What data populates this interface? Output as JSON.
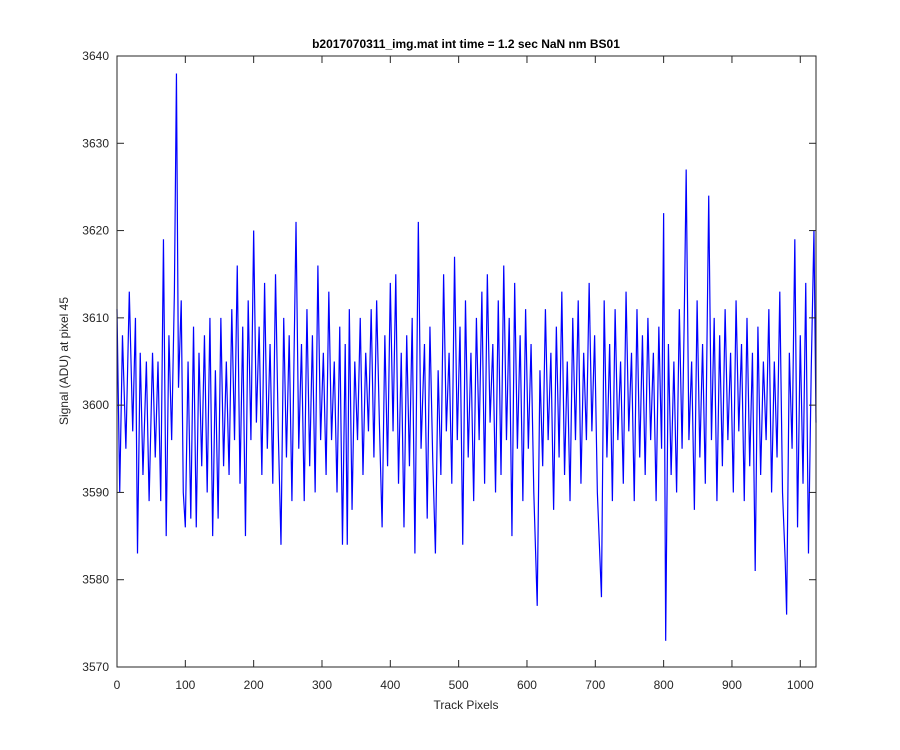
{
  "chart_data": {
    "type": "line",
    "title": "b2017070311_img.mat int time = 1.2 sec  NaN nm BS01",
    "xlabel": "Track Pixels",
    "ylabel": "Signal (ADU) at pixel 45",
    "x": [
      0,
      4,
      8,
      13,
      18,
      23,
      27,
      30,
      34,
      38,
      43,
      47,
      52,
      56,
      60,
      64,
      68,
      72,
      76,
      80,
      84,
      87,
      90,
      94,
      97,
      100,
      104,
      108,
      112,
      116,
      120,
      124,
      128,
      132,
      136,
      140,
      144,
      148,
      152,
      156,
      160,
      164,
      168,
      172,
      176,
      180,
      184,
      188,
      192,
      196,
      200,
      204,
      208,
      212,
      216,
      220,
      224,
      228,
      232,
      236,
      240,
      244,
      248,
      252,
      256,
      262,
      266,
      270,
      274,
      278,
      282,
      286,
      290,
      294,
      298,
      302,
      306,
      310,
      314,
      318,
      322,
      326,
      330,
      334,
      337,
      340,
      344,
      348,
      352,
      356,
      360,
      364,
      368,
      372,
      376,
      380,
      384,
      388,
      392,
      396,
      400,
      404,
      408,
      412,
      416,
      420,
      424,
      428,
      432,
      436,
      441,
      445,
      450,
      454,
      458,
      462,
      466,
      470,
      474,
      478,
      482,
      486,
      490,
      494,
      498,
      502,
      506,
      510,
      514,
      518,
      522,
      526,
      530,
      534,
      538,
      542,
      546,
      550,
      554,
      558,
      562,
      566,
      570,
      574,
      578,
      582,
      586,
      590,
      594,
      598,
      602,
      606,
      610,
      615,
      619,
      623,
      627,
      631,
      635,
      639,
      643,
      647,
      651,
      655,
      659,
      663,
      667,
      671,
      675,
      679,
      683,
      687,
      691,
      695,
      699,
      703,
      709,
      713,
      717,
      721,
      725,
      729,
      733,
      737,
      741,
      745,
      749,
      753,
      757,
      761,
      765,
      769,
      773,
      777,
      781,
      785,
      789,
      793,
      797,
      800,
      803,
      807,
      811,
      815,
      819,
      823,
      827,
      830,
      833,
      837,
      841,
      845,
      849,
      853,
      857,
      861,
      866,
      870,
      874,
      878,
      882,
      886,
      890,
      894,
      898,
      902,
      906,
      910,
      914,
      918,
      922,
      926,
      930,
      934,
      938,
      942,
      946,
      950,
      954,
      958,
      962,
      966,
      970,
      974,
      978,
      980,
      984,
      988,
      992,
      996,
      1000,
      1004,
      1008,
      1012,
      1016,
      1020,
      1023
    ],
    "series": [
      {
        "color": "#0000ff",
        "values": [
          3611,
          3590,
          3608,
          3595,
          3613,
          3597,
          3610,
          3583,
          3606,
          3592,
          3605,
          3589,
          3606,
          3594,
          3605,
          3589,
          3619,
          3585,
          3608,
          3596,
          3613,
          3638,
          3602,
          3612,
          3590,
          3586,
          3605,
          3587,
          3609,
          3586,
          3606,
          3593,
          3608,
          3590,
          3610,
          3585,
          3604,
          3587,
          3610,
          3593,
          3605,
          3592,
          3611,
          3596,
          3616,
          3591,
          3609,
          3585,
          3612,
          3596,
          3620,
          3598,
          3609,
          3592,
          3614,
          3595,
          3607,
          3591,
          3615,
          3597,
          3584,
          3610,
          3594,
          3608,
          3589,
          3621,
          3595,
          3607,
          3589,
          3611,
          3593,
          3608,
          3590,
          3616,
          3596,
          3606,
          3592,
          3613,
          3596,
          3605,
          3590,
          3609,
          3584,
          3607,
          3584,
          3611,
          3588,
          3605,
          3596,
          3610,
          3592,
          3606,
          3597,
          3611,
          3594,
          3612,
          3598,
          3586,
          3608,
          3593,
          3614,
          3597,
          3615,
          3591,
          3606,
          3586,
          3608,
          3593,
          3610,
          3583,
          3621,
          3595,
          3607,
          3587,
          3609,
          3594,
          3583,
          3604,
          3592,
          3615,
          3597,
          3606,
          3591,
          3617,
          3596,
          3609,
          3584,
          3612,
          3594,
          3606,
          3589,
          3610,
          3596,
          3613,
          3591,
          3615,
          3598,
          3607,
          3590,
          3612,
          3592,
          3616,
          3596,
          3610,
          3585,
          3614,
          3595,
          3608,
          3589,
          3611,
          3595,
          3607,
          3590,
          3577,
          3604,
          3593,
          3611,
          3596,
          3606,
          3588,
          3609,
          3594,
          3613,
          3592,
          3605,
          3589,
          3610,
          3596,
          3612,
          3591,
          3606,
          3596,
          3614,
          3597,
          3608,
          3590,
          3578,
          3612,
          3594,
          3607,
          3589,
          3611,
          3596,
          3605,
          3591,
          3613,
          3597,
          3606,
          3589,
          3611,
          3594,
          3608,
          3592,
          3610,
          3596,
          3606,
          3589,
          3609,
          3595,
          3622,
          3573,
          3607,
          3592,
          3605,
          3590,
          3611,
          3595,
          3609,
          3627,
          3596,
          3605,
          3588,
          3612,
          3594,
          3607,
          3591,
          3624,
          3596,
          3610,
          3589,
          3608,
          3593,
          3611,
          3596,
          3606,
          3590,
          3612,
          3597,
          3607,
          3589,
          3610,
          3593,
          3606,
          3581,
          3609,
          3592,
          3605,
          3596,
          3611,
          3590,
          3605,
          3594,
          3613,
          3590,
          3582,
          3576,
          3606,
          3595,
          3619,
          3586,
          3608,
          3591,
          3614,
          3583,
          3604,
          3620,
          3598
        ]
      }
    ],
    "xlim": [
      0,
      1023
    ],
    "ylim": [
      3570,
      3640
    ],
    "xticks": [
      0,
      100,
      200,
      300,
      400,
      500,
      600,
      700,
      800,
      900,
      1000
    ],
    "yticks": [
      3570,
      3580,
      3590,
      3600,
      3610,
      3620,
      3630,
      3640
    ]
  }
}
